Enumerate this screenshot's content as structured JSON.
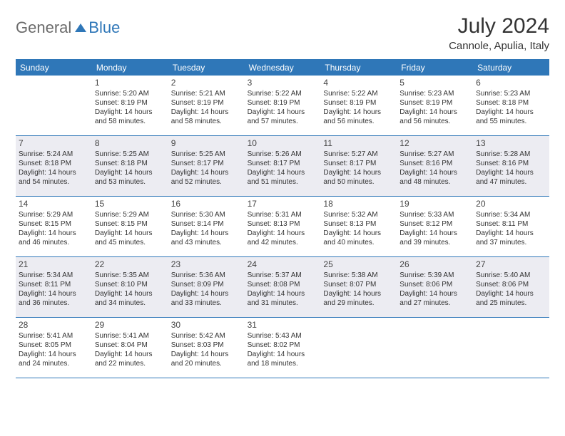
{
  "logo": {
    "gray": "General",
    "blue": "Blue"
  },
  "title": "July 2024",
  "location": "Cannole, Apulia, Italy",
  "colors": {
    "header_bg": "#2f77b8",
    "shaded_bg": "#ececf2",
    "logo_gray": "#6b6b6b",
    "logo_blue": "#2f77b8"
  },
  "dayHeaders": [
    "Sunday",
    "Monday",
    "Tuesday",
    "Wednesday",
    "Thursday",
    "Friday",
    "Saturday"
  ],
  "weeks": [
    [
      {
        "num": "",
        "shaded": false,
        "sunrise": "",
        "sunset": "",
        "daylight": ""
      },
      {
        "num": "1",
        "shaded": false,
        "sunrise": "Sunrise: 5:20 AM",
        "sunset": "Sunset: 8:19 PM",
        "daylight": "Daylight: 14 hours and 58 minutes."
      },
      {
        "num": "2",
        "shaded": false,
        "sunrise": "Sunrise: 5:21 AM",
        "sunset": "Sunset: 8:19 PM",
        "daylight": "Daylight: 14 hours and 58 minutes."
      },
      {
        "num": "3",
        "shaded": false,
        "sunrise": "Sunrise: 5:22 AM",
        "sunset": "Sunset: 8:19 PM",
        "daylight": "Daylight: 14 hours and 57 minutes."
      },
      {
        "num": "4",
        "shaded": false,
        "sunrise": "Sunrise: 5:22 AM",
        "sunset": "Sunset: 8:19 PM",
        "daylight": "Daylight: 14 hours and 56 minutes."
      },
      {
        "num": "5",
        "shaded": false,
        "sunrise": "Sunrise: 5:23 AM",
        "sunset": "Sunset: 8:19 PM",
        "daylight": "Daylight: 14 hours and 56 minutes."
      },
      {
        "num": "6",
        "shaded": false,
        "sunrise": "Sunrise: 5:23 AM",
        "sunset": "Sunset: 8:18 PM",
        "daylight": "Daylight: 14 hours and 55 minutes."
      }
    ],
    [
      {
        "num": "7",
        "shaded": true,
        "sunrise": "Sunrise: 5:24 AM",
        "sunset": "Sunset: 8:18 PM",
        "daylight": "Daylight: 14 hours and 54 minutes."
      },
      {
        "num": "8",
        "shaded": true,
        "sunrise": "Sunrise: 5:25 AM",
        "sunset": "Sunset: 8:18 PM",
        "daylight": "Daylight: 14 hours and 53 minutes."
      },
      {
        "num": "9",
        "shaded": true,
        "sunrise": "Sunrise: 5:25 AM",
        "sunset": "Sunset: 8:17 PM",
        "daylight": "Daylight: 14 hours and 52 minutes."
      },
      {
        "num": "10",
        "shaded": true,
        "sunrise": "Sunrise: 5:26 AM",
        "sunset": "Sunset: 8:17 PM",
        "daylight": "Daylight: 14 hours and 51 minutes."
      },
      {
        "num": "11",
        "shaded": true,
        "sunrise": "Sunrise: 5:27 AM",
        "sunset": "Sunset: 8:17 PM",
        "daylight": "Daylight: 14 hours and 50 minutes."
      },
      {
        "num": "12",
        "shaded": true,
        "sunrise": "Sunrise: 5:27 AM",
        "sunset": "Sunset: 8:16 PM",
        "daylight": "Daylight: 14 hours and 48 minutes."
      },
      {
        "num": "13",
        "shaded": true,
        "sunrise": "Sunrise: 5:28 AM",
        "sunset": "Sunset: 8:16 PM",
        "daylight": "Daylight: 14 hours and 47 minutes."
      }
    ],
    [
      {
        "num": "14",
        "shaded": false,
        "sunrise": "Sunrise: 5:29 AM",
        "sunset": "Sunset: 8:15 PM",
        "daylight": "Daylight: 14 hours and 46 minutes."
      },
      {
        "num": "15",
        "shaded": false,
        "sunrise": "Sunrise: 5:29 AM",
        "sunset": "Sunset: 8:15 PM",
        "daylight": "Daylight: 14 hours and 45 minutes."
      },
      {
        "num": "16",
        "shaded": false,
        "sunrise": "Sunrise: 5:30 AM",
        "sunset": "Sunset: 8:14 PM",
        "daylight": "Daylight: 14 hours and 43 minutes."
      },
      {
        "num": "17",
        "shaded": false,
        "sunrise": "Sunrise: 5:31 AM",
        "sunset": "Sunset: 8:13 PM",
        "daylight": "Daylight: 14 hours and 42 minutes."
      },
      {
        "num": "18",
        "shaded": false,
        "sunrise": "Sunrise: 5:32 AM",
        "sunset": "Sunset: 8:13 PM",
        "daylight": "Daylight: 14 hours and 40 minutes."
      },
      {
        "num": "19",
        "shaded": false,
        "sunrise": "Sunrise: 5:33 AM",
        "sunset": "Sunset: 8:12 PM",
        "daylight": "Daylight: 14 hours and 39 minutes."
      },
      {
        "num": "20",
        "shaded": false,
        "sunrise": "Sunrise: 5:34 AM",
        "sunset": "Sunset: 8:11 PM",
        "daylight": "Daylight: 14 hours and 37 minutes."
      }
    ],
    [
      {
        "num": "21",
        "shaded": true,
        "sunrise": "Sunrise: 5:34 AM",
        "sunset": "Sunset: 8:11 PM",
        "daylight": "Daylight: 14 hours and 36 minutes."
      },
      {
        "num": "22",
        "shaded": true,
        "sunrise": "Sunrise: 5:35 AM",
        "sunset": "Sunset: 8:10 PM",
        "daylight": "Daylight: 14 hours and 34 minutes."
      },
      {
        "num": "23",
        "shaded": true,
        "sunrise": "Sunrise: 5:36 AM",
        "sunset": "Sunset: 8:09 PM",
        "daylight": "Daylight: 14 hours and 33 minutes."
      },
      {
        "num": "24",
        "shaded": true,
        "sunrise": "Sunrise: 5:37 AM",
        "sunset": "Sunset: 8:08 PM",
        "daylight": "Daylight: 14 hours and 31 minutes."
      },
      {
        "num": "25",
        "shaded": true,
        "sunrise": "Sunrise: 5:38 AM",
        "sunset": "Sunset: 8:07 PM",
        "daylight": "Daylight: 14 hours and 29 minutes."
      },
      {
        "num": "26",
        "shaded": true,
        "sunrise": "Sunrise: 5:39 AM",
        "sunset": "Sunset: 8:06 PM",
        "daylight": "Daylight: 14 hours and 27 minutes."
      },
      {
        "num": "27",
        "shaded": true,
        "sunrise": "Sunrise: 5:40 AM",
        "sunset": "Sunset: 8:06 PM",
        "daylight": "Daylight: 14 hours and 25 minutes."
      }
    ],
    [
      {
        "num": "28",
        "shaded": false,
        "sunrise": "Sunrise: 5:41 AM",
        "sunset": "Sunset: 8:05 PM",
        "daylight": "Daylight: 14 hours and 24 minutes."
      },
      {
        "num": "29",
        "shaded": false,
        "sunrise": "Sunrise: 5:41 AM",
        "sunset": "Sunset: 8:04 PM",
        "daylight": "Daylight: 14 hours and 22 minutes."
      },
      {
        "num": "30",
        "shaded": false,
        "sunrise": "Sunrise: 5:42 AM",
        "sunset": "Sunset: 8:03 PM",
        "daylight": "Daylight: 14 hours and 20 minutes."
      },
      {
        "num": "31",
        "shaded": false,
        "sunrise": "Sunrise: 5:43 AM",
        "sunset": "Sunset: 8:02 PM",
        "daylight": "Daylight: 14 hours and 18 minutes."
      },
      {
        "num": "",
        "shaded": false,
        "sunrise": "",
        "sunset": "",
        "daylight": ""
      },
      {
        "num": "",
        "shaded": false,
        "sunrise": "",
        "sunset": "",
        "daylight": ""
      },
      {
        "num": "",
        "shaded": false,
        "sunrise": "",
        "sunset": "",
        "daylight": ""
      }
    ]
  ]
}
